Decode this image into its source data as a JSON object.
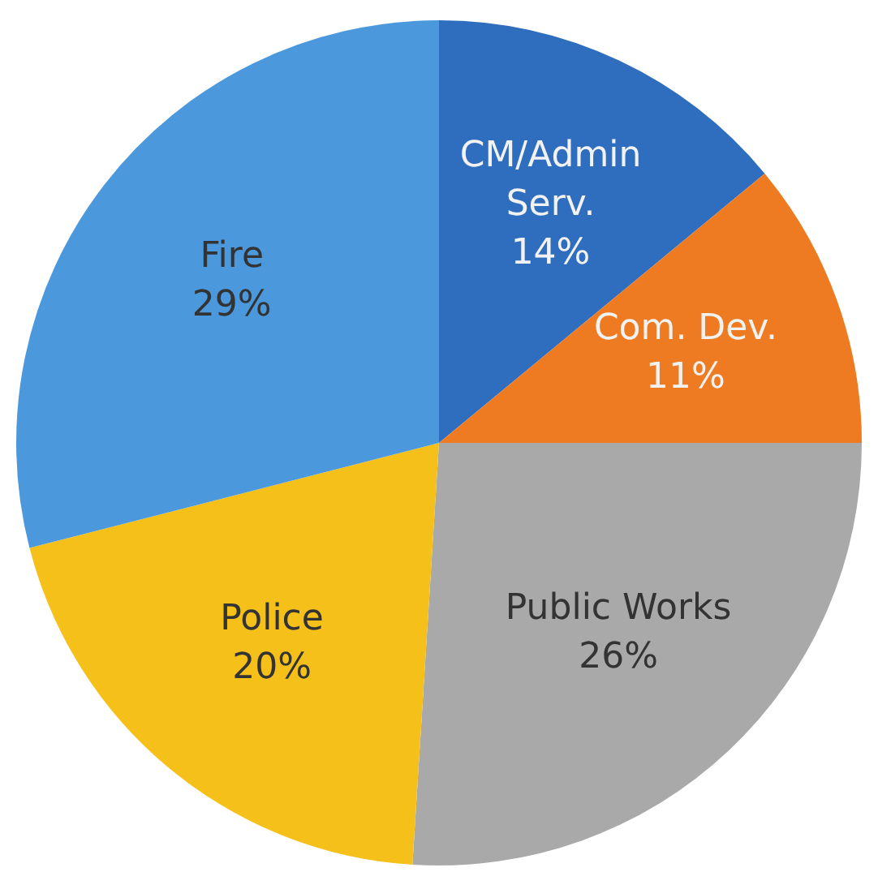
{
  "chart_data": {
    "type": "pie",
    "categories": [
      "CM/Admin Serv.",
      "Com. Dev.",
      "Public Works",
      "Police",
      "Fire"
    ],
    "values": [
      14,
      11,
      26,
      20,
      29
    ],
    "value_labels": [
      "14%",
      "11%",
      "26%",
      "20%",
      "29%"
    ],
    "colors": [
      "#2f6dbe",
      "#ee7b22",
      "#a9a9a9",
      "#f4c019",
      "#4b98dd"
    ],
    "legend": false
  }
}
